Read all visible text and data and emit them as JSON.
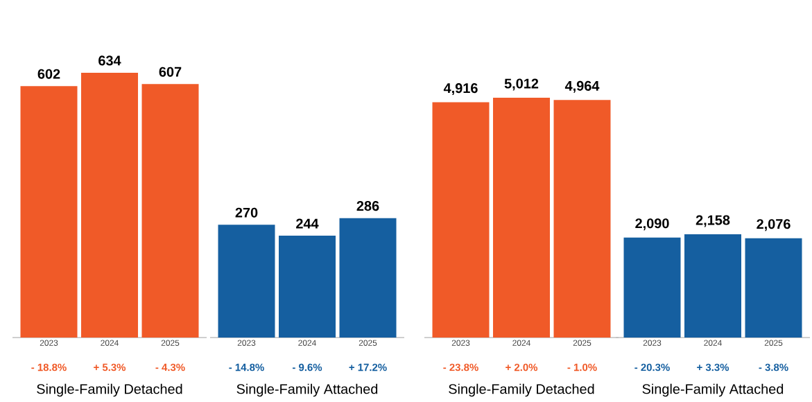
{
  "chart_data": [
    {
      "type": "bar",
      "categories": [
        "2023",
        "2024",
        "2025"
      ],
      "values": [
        602,
        634,
        607
      ],
      "value_labels": [
        "602",
        "634",
        "607"
      ],
      "color": "#f05a28",
      "tick_labels": "x",
      "xlabel": "Single-Family Detached",
      "annotations": [
        "- 18.8%",
        "+ 5.3%",
        "- 4.3%"
      ]
    },
    {
      "type": "bar",
      "categories": [
        "2023",
        "2024",
        "2025"
      ],
      "values": [
        270,
        244,
        286
      ],
      "value_labels": [
        "270",
        "244",
        "286"
      ],
      "color": "#155fa0",
      "tick_labels": "x",
      "xlabel": "Single-Family Attached",
      "annotations": [
        "- 14.8%",
        "- 9.6%",
        "+ 17.2%"
      ]
    },
    {
      "type": "bar",
      "categories": [
        "2023",
        "2024",
        "2025"
      ],
      "values": [
        4916,
        5012,
        4964
      ],
      "value_labels": [
        "4,916",
        "5,012",
        "4,964"
      ],
      "color": "#f05a28",
      "tick_labels": "x",
      "xlabel": "Single-Family Detached",
      "annotations": [
        "- 23.8%",
        "+ 2.0%",
        "- 1.0%"
      ]
    },
    {
      "type": "bar",
      "categories": [
        "2023",
        "2024",
        "2025"
      ],
      "values": [
        2090,
        2158,
        2076
      ],
      "value_labels": [
        "2,090",
        "2,158",
        "2,076"
      ],
      "color": "#155fa0",
      "tick_labels": "x",
      "xlabel": "Single-Family Attached",
      "annotations": [
        "- 20.3%",
        "+ 3.3%",
        "- 3.8%"
      ]
    }
  ]
}
